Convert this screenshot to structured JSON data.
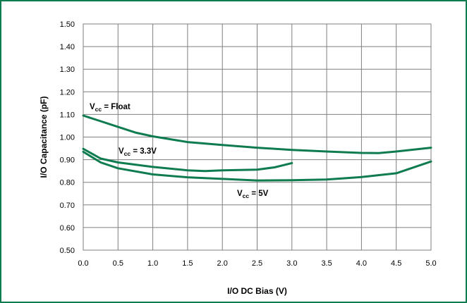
{
  "chart_data": {
    "type": "line",
    "xlabel": "I/O DC Bias (V)",
    "ylabel": "I/O Capacitance (pF)",
    "xlim": [
      0,
      5
    ],
    "ylim": [
      0.5,
      1.5
    ],
    "x_ticks": [
      "0.0",
      "0.5",
      "1.0",
      "1.5",
      "2.0",
      "2.5",
      "3.0",
      "3.5",
      "4.0",
      "4.5",
      "5.0"
    ],
    "y_ticks": [
      "0.50",
      "0.60",
      "0.70",
      "0.80",
      "0.90",
      "1.00",
      "1.10",
      "1.20",
      "1.30",
      "1.40",
      "1.50"
    ],
    "grid": true,
    "line_color": "#0f7c4f",
    "series": [
      {
        "label_main": "V",
        "label_sub": "cc",
        "label_rest": " = Float",
        "x": [
          0.0,
          0.25,
          0.5,
          0.75,
          1.0,
          1.5,
          2.0,
          2.5,
          3.0,
          3.5,
          4.0,
          4.25,
          4.5,
          5.0
        ],
        "y": [
          1.095,
          1.07,
          1.045,
          1.02,
          1.003,
          0.978,
          0.965,
          0.953,
          0.943,
          0.936,
          0.93,
          0.929,
          0.936,
          0.953
        ]
      },
      {
        "label_main": "V",
        "label_sub": "cc",
        "label_rest": " = 3.3V",
        "x": [
          0.0,
          0.25,
          0.5,
          1.0,
          1.5,
          1.75,
          2.0,
          2.5,
          2.75,
          3.0
        ],
        "y": [
          0.948,
          0.905,
          0.888,
          0.868,
          0.853,
          0.85,
          0.853,
          0.856,
          0.866,
          0.885
        ]
      },
      {
        "label_main": "V",
        "label_sub": "cc",
        "label_rest": " = 5V",
        "x": [
          0.0,
          0.25,
          0.5,
          1.0,
          1.5,
          2.0,
          2.5,
          3.0,
          3.5,
          4.0,
          4.5,
          5.0
        ],
        "y": [
          0.935,
          0.888,
          0.862,
          0.835,
          0.822,
          0.815,
          0.808,
          0.809,
          0.812,
          0.823,
          0.84,
          0.892
        ]
      }
    ]
  }
}
